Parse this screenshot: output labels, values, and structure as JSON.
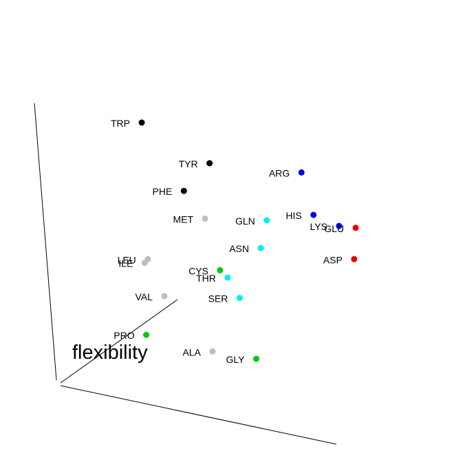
{
  "chart_data": {
    "type": "scatter",
    "title": "",
    "axis_labels": {
      "z": "flexibility"
    },
    "groups": {
      "aromatic": "#000000",
      "basic": "#0000ee",
      "acidic": "#ee0000",
      "polar": "#00eeee",
      "special": "#00cc00",
      "hydrophobic": "#bebebe"
    },
    "points": [
      {
        "label": "TRP",
        "group": "aromatic",
        "proj": [
          -0.42,
          1.0
        ]
      },
      {
        "label": "TYR",
        "group": "aromatic",
        "proj": [
          0.03,
          0.78
        ]
      },
      {
        "label": "PHE",
        "group": "aromatic",
        "proj": [
          -0.14,
          0.63
        ]
      },
      {
        "label": "ARG",
        "group": "basic",
        "proj": [
          0.64,
          0.73
        ]
      },
      {
        "label": "HIS",
        "group": "basic",
        "proj": [
          0.72,
          0.5
        ]
      },
      {
        "label": "LYS",
        "group": "basic",
        "proj": [
          0.89,
          0.44
        ]
      },
      {
        "label": "GLU",
        "group": "acidic",
        "proj": [
          1.0,
          0.43
        ]
      },
      {
        "label": "ASP",
        "group": "acidic",
        "proj": [
          0.99,
          0.26
        ]
      },
      {
        "label": "MET",
        "group": "hydrophobic",
        "proj": [
          0.0,
          0.48
        ]
      },
      {
        "label": "GLN",
        "group": "polar",
        "proj": [
          0.41,
          0.47
        ]
      },
      {
        "label": "ASN",
        "group": "polar",
        "proj": [
          0.37,
          0.32
        ]
      },
      {
        "label": "LEU",
        "group": "hydrophobic",
        "proj": [
          -0.38,
          0.26
        ]
      },
      {
        "label": "ILE",
        "group": "hydrophobic",
        "proj": [
          -0.4,
          0.24
        ]
      },
      {
        "label": "CYS",
        "group": "special",
        "proj": [
          0.1,
          0.2
        ]
      },
      {
        "label": "THR",
        "group": "polar",
        "proj": [
          0.15,
          0.16
        ]
      },
      {
        "label": "VAL",
        "group": "hydrophobic",
        "proj": [
          -0.27,
          0.06
        ]
      },
      {
        "label": "SER",
        "group": "polar",
        "proj": [
          0.23,
          0.05
        ]
      },
      {
        "label": "PRO",
        "group": "special",
        "proj": [
          -0.39,
          -0.15
        ]
      },
      {
        "label": "ALA",
        "group": "hydrophobic",
        "proj": [
          0.05,
          -0.24
        ]
      },
      {
        "label": "GLY",
        "group": "special",
        "proj": [
          0.34,
          -0.28
        ]
      }
    ]
  }
}
